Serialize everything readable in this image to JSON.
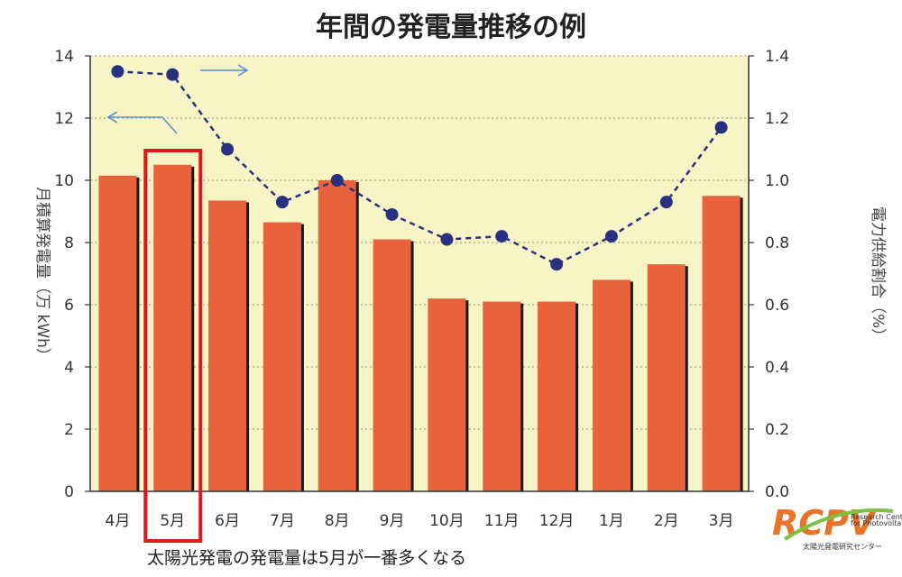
{
  "chart_data": {
    "type": "bar",
    "title": "年間の発電量推移の例",
    "categories": [
      "4月",
      "5月",
      "6月",
      "7月",
      "8月",
      "9月",
      "10月",
      "11月",
      "12月",
      "1月",
      "2月",
      "3月"
    ],
    "series": [
      {
        "values": [
          10.15,
          10.5,
          9.35,
          8.65,
          10.0,
          8.1,
          6.2,
          6.1,
          6.1,
          6.8,
          7.3,
          9.5
        ]
      },
      {
        "values": [
          1.35,
          1.34,
          1.1,
          0.93,
          1.0,
          0.89,
          0.81,
          0.82,
          0.73,
          0.82,
          0.93,
          1.17
        ]
      }
    ],
    "ylabel": "月積算発電量（万 kWh）",
    "y2label": "電力供給割合（%）",
    "ylim": [
      0,
      14
    ],
    "y2lim": [
      0,
      1.4
    ],
    "yticks": [
      "0",
      "2",
      "4",
      "6",
      "8",
      "10",
      "12",
      "14"
    ],
    "y2ticks": [
      "0.0",
      "0.2",
      "0.4",
      "0.6",
      "0.8",
      "1.0",
      "1.2",
      "1.4"
    ],
    "highlight_category": "5月",
    "grid": true,
    "colors": {
      "bar": "#e8623c",
      "bar_shadow": "#1a1a1a",
      "line": "#283080",
      "plot_bg": "#f7f4c6",
      "grid": "#b8b48a",
      "highlight": "#e0191c",
      "arrow": "#5b8ed1"
    }
  },
  "caption": "太陽光発電の発電量は5月が一番多くなる",
  "logo": {
    "text": "RCPV",
    "subtitle": "太陽光発電研究センター",
    "small_lines": [
      "Research Center",
      "for Photovoltaics"
    ]
  }
}
